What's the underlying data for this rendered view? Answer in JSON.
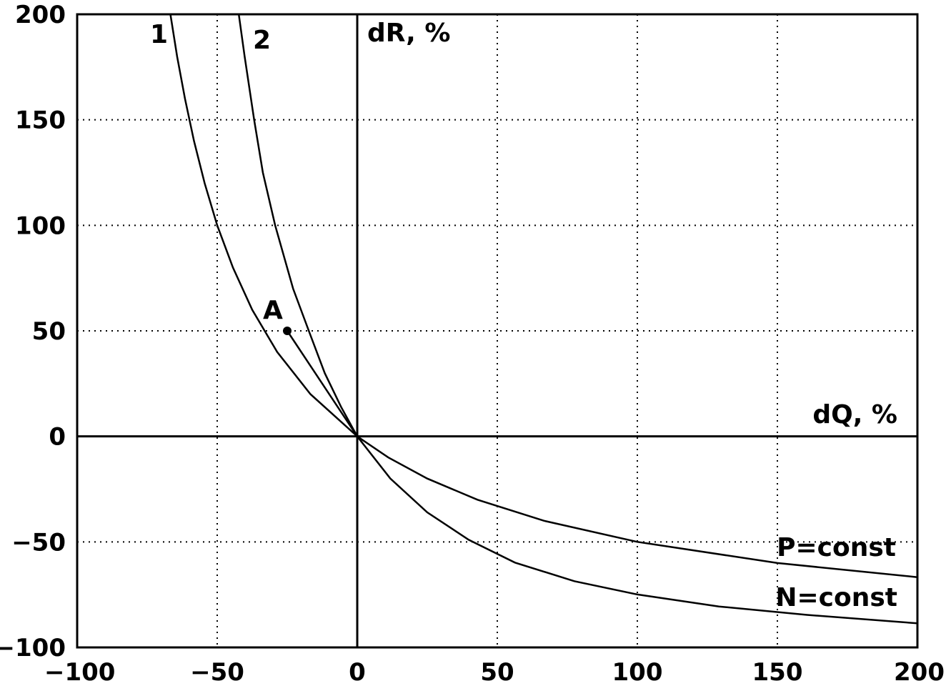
{
  "chart_data": {
    "type": "line",
    "title": "",
    "xlabel": "dQ, %",
    "ylabel": "dR, %",
    "xlim": [
      -100,
      200
    ],
    "ylim": [
      -100,
      200
    ],
    "x_ticks": [
      -100,
      -50,
      0,
      50,
      100,
      150,
      200
    ],
    "y_ticks": [
      -100,
      -50,
      0,
      50,
      100,
      150,
      200
    ],
    "x_tick_labels": [
      "−100",
      "−50",
      "0",
      "50",
      "100",
      "150",
      "200"
    ],
    "y_tick_labels": [
      "−100",
      "−50",
      "0",
      "50",
      "100",
      "150",
      "200"
    ],
    "grid": true,
    "series": [
      {
        "name": "P=const",
        "curve_label": "1",
        "x": [
          -66.7,
          -64.3,
          -61.5,
          -58.3,
          -54.5,
          -50,
          -44.4,
          -37.5,
          -28.6,
          -16.7,
          0,
          11.1,
          25,
          42.9,
          66.7,
          100,
          150,
          200
        ],
        "y": [
          200,
          180,
          160,
          140,
          120,
          100,
          80,
          60,
          40,
          20,
          0,
          -10,
          -20,
          -30,
          -40,
          -50,
          -60,
          -66.7
        ]
      },
      {
        "name": "N=const",
        "curve_label": "2",
        "x": [
          -42.3,
          -40.2,
          -36.8,
          -33.7,
          -29.3,
          -22.9,
          -17.3,
          -11.6,
          -5.8,
          0,
          11.8,
          25,
          39.8,
          56.3,
          77.5,
          100,
          129.1,
          160.6,
          200
        ],
        "y": [
          200,
          180,
          150,
          125,
          100,
          70,
          50,
          30,
          14,
          0,
          -20,
          -36,
          -49,
          -59.8,
          -68.6,
          -74.9,
          -80.6,
          -84.6,
          -88.6
        ]
      }
    ],
    "points": [
      {
        "label": "A",
        "x": -25,
        "y": 50
      }
    ],
    "annotation_lines": [
      {
        "from": [
          -25,
          50
        ],
        "to": [
          0,
          0
        ]
      }
    ]
  }
}
